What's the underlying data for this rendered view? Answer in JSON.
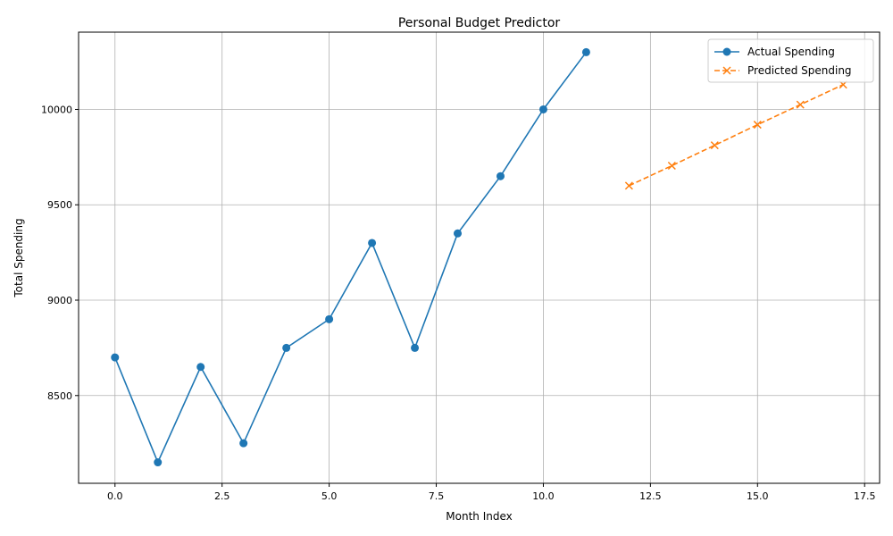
{
  "chart_data": {
    "type": "line",
    "title": "Personal Budget Predictor",
    "xlabel": "Month Index",
    "ylabel": "Total Spending",
    "xlim": [
      -0.85,
      17.85
    ],
    "ylim": [
      8040,
      10405
    ],
    "xticks": [
      0.0,
      2.5,
      5.0,
      7.5,
      10.0,
      12.5,
      15.0,
      17.5
    ],
    "xtick_labels": [
      "0.0",
      "2.5",
      "5.0",
      "7.5",
      "10.0",
      "12.5",
      "15.0",
      "17.5"
    ],
    "yticks": [
      8500,
      9000,
      9500,
      10000
    ],
    "ytick_labels": [
      "8500",
      "9000",
      "9500",
      "10000"
    ],
    "grid": true,
    "legend_position": "top-right",
    "series": [
      {
        "name": "Actual Spending",
        "color": "#1f77b4",
        "line_style": "solid",
        "marker": "circle",
        "x": [
          0,
          1,
          2,
          3,
          4,
          5,
          6,
          7,
          8,
          9,
          10,
          11
        ],
        "y": [
          8700,
          8150,
          8650,
          8250,
          8750,
          8900,
          9300,
          8750,
          9350,
          9650,
          10000,
          10300
        ]
      },
      {
        "name": "Predicted Spending",
        "color": "#ff7f0e",
        "line_style": "dashed",
        "marker": "x",
        "x": [
          12,
          13,
          14,
          15,
          16,
          17
        ],
        "y": [
          9600,
          9705,
          9812,
          9920,
          10025,
          10130
        ]
      }
    ]
  }
}
